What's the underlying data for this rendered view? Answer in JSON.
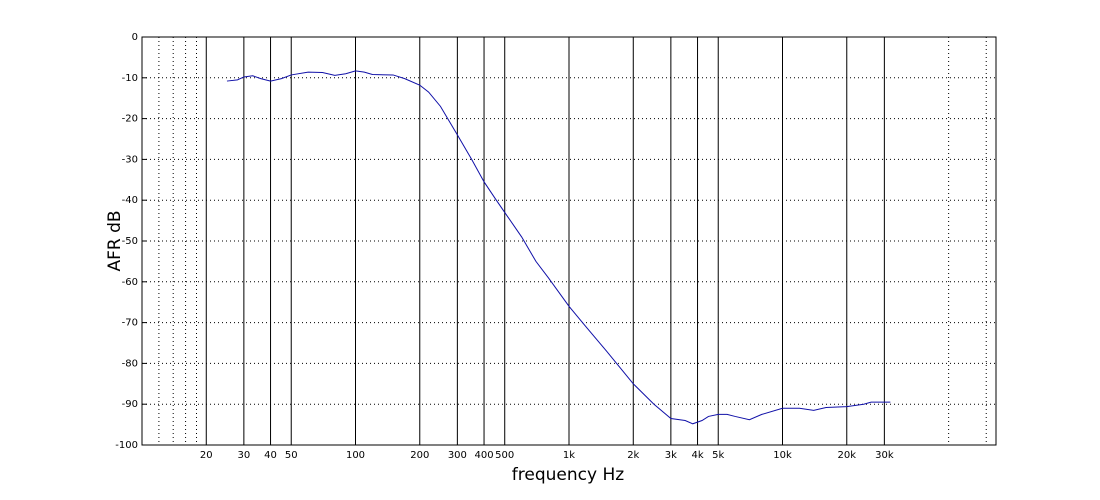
{
  "chart_data": {
    "type": "line",
    "xlabel": "frequency   Hz",
    "ylabel": "AFR dB",
    "log_x": true,
    "grid": true,
    "x": [
      25,
      28,
      30,
      33,
      36,
      40,
      45,
      50,
      60,
      70,
      80,
      90,
      100,
      110,
      120,
      150,
      170,
      200,
      220,
      250,
      300,
      350,
      400,
      450,
      500,
      600,
      700,
      800,
      1000,
      1200,
      1500,
      2000,
      2500,
      3000,
      3500,
      3800,
      4200,
      4500,
      5000,
      5500,
      6000,
      7000,
      8000,
      10000,
      12000,
      14000,
      16000,
      20000,
      24000,
      26000,
      32000
    ],
    "series": [
      {
        "name": "AFR",
        "color": "#1010a8",
        "values": [
          -10.8,
          -10.5,
          -9.8,
          -9.5,
          -10.2,
          -10.8,
          -10.2,
          -9.3,
          -8.6,
          -8.7,
          -9.4,
          -9.0,
          -8.3,
          -8.6,
          -9.2,
          -9.3,
          -10.2,
          -11.8,
          -13.5,
          -17,
          -24,
          -30,
          -35.5,
          -39.5,
          -43,
          -49,
          -55,
          -59,
          -66,
          -71,
          -77,
          -85,
          -90,
          -93.5,
          -94,
          -94.8,
          -94,
          -93,
          -92.5,
          -92.5,
          -93,
          -93.8,
          -92.5,
          -91,
          -91,
          -91.5,
          -90.8,
          -90.6,
          -90,
          -89.5,
          -89.5
        ]
      }
    ],
    "xlim": [
      10,
      100000
    ],
    "ylim": [
      -100,
      0
    ],
    "xticks": [
      20,
      30,
      40,
      50,
      100,
      200,
      300,
      400,
      500,
      {
        "value": 1000,
        "label": "1k"
      },
      {
        "value": 2000,
        "label": "2k"
      },
      {
        "value": 3000,
        "label": "3k"
      },
      {
        "value": 4000,
        "label": "4k"
      },
      {
        "value": 5000,
        "label": "5k"
      },
      {
        "value": 10000,
        "label": "10k"
      },
      {
        "value": 20000,
        "label": "20k"
      },
      {
        "value": 30000,
        "label": "30k"
      }
    ],
    "x_minor_grid": [
      12,
      14,
      16,
      18,
      60000,
      90000
    ],
    "yticks": [
      0,
      -10,
      -20,
      -30,
      -40,
      -50,
      -60,
      -70,
      -80,
      -90,
      -100
    ]
  }
}
